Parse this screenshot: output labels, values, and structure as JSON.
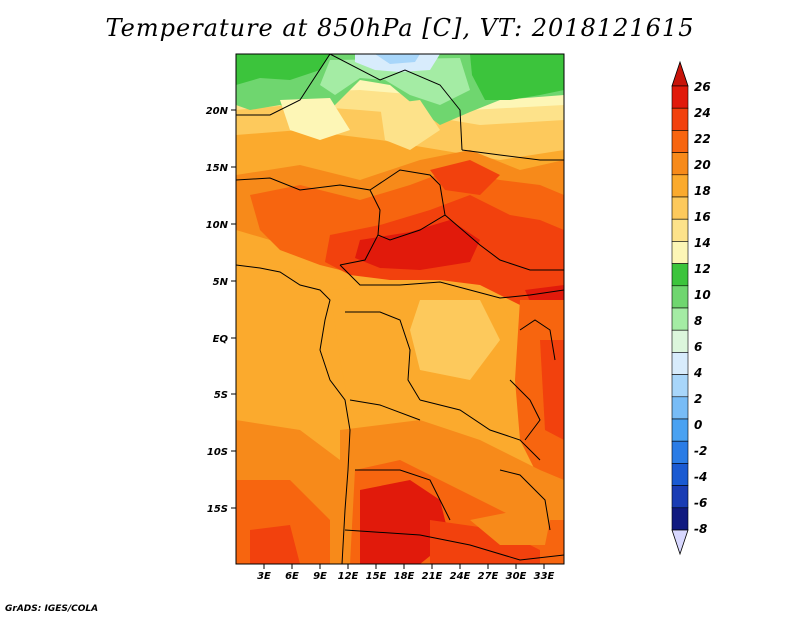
{
  "title": "Temperature at 850hPa [C], VT: 2018121615",
  "credit": "GrADS: IGES/COLA",
  "map": {
    "lon_ticks": [
      "3E",
      "6E",
      "9E",
      "12E",
      "15E",
      "18E",
      "21E",
      "24E",
      "27E",
      "30E",
      "33E"
    ],
    "lat_ticks": [
      "20N",
      "15N",
      "10N",
      "5N",
      "EQ",
      "5S",
      "10S",
      "15S"
    ]
  },
  "colorbar": {
    "labels": [
      "26",
      "24",
      "22",
      "20",
      "18",
      "16",
      "14",
      "12",
      "10",
      "8",
      "6",
      "4",
      "2",
      "0",
      "-2",
      "-4",
      "-6",
      "-8"
    ],
    "colors": [
      "#e11a0b",
      "#f2410d",
      "#f7650f",
      "#f78a1a",
      "#fbaa2d",
      "#fdc95c",
      "#fde28a",
      "#fdf6b6",
      "#3cc43c",
      "#6fd66f",
      "#a4eca4",
      "#dcf6dc",
      "#d8ecfc",
      "#a8d6fa",
      "#78bcf6",
      "#4aa2f2",
      "#2a7ce6",
      "#1a5ad2",
      "#1a3cb4",
      "#111a80"
    ],
    "top_arrow_color": "#c8140a",
    "bottom_arrow_color": "#d8d8ff"
  }
}
